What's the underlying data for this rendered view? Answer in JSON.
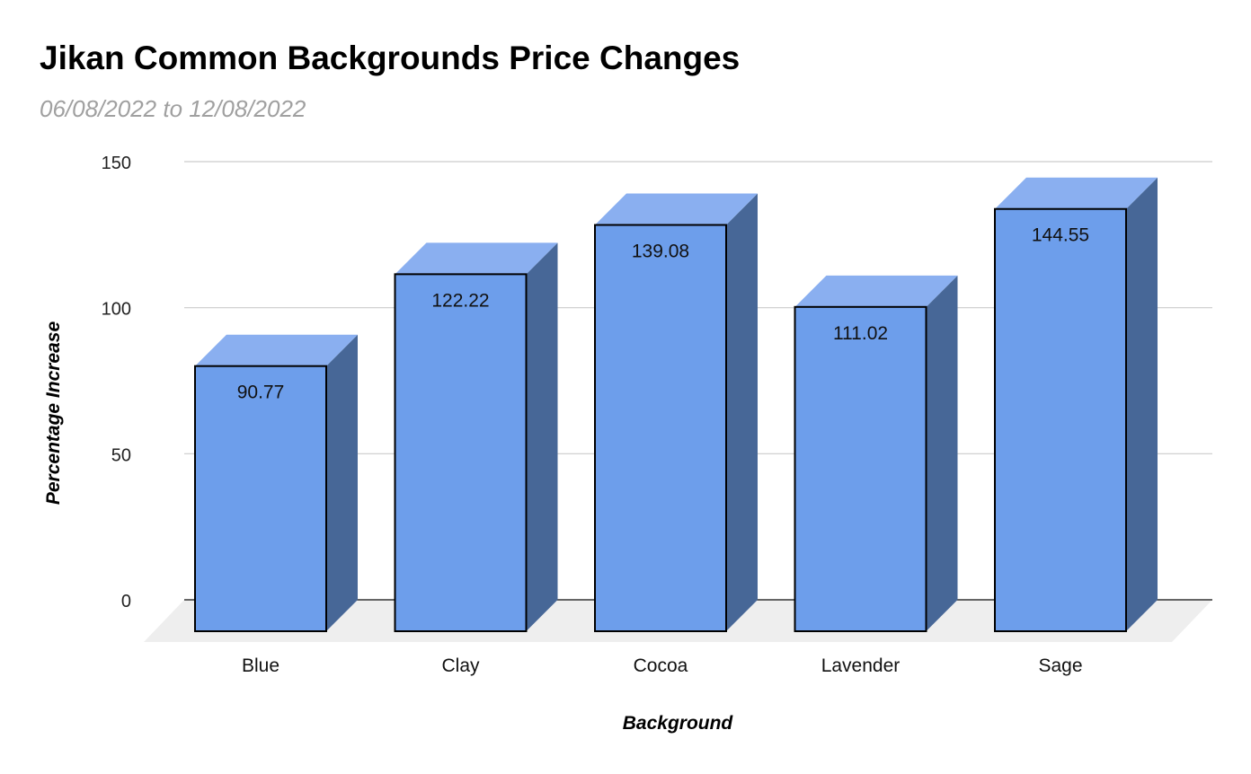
{
  "chart_data": {
    "type": "bar",
    "title": "Jikan Common Backgrounds Price Changes",
    "subtitle": "06/08/2022 to 12/08/2022",
    "xlabel": "Background",
    "ylabel": "Percentage Increase",
    "categories": [
      "Blue",
      "Clay",
      "Cocoa",
      "Lavender",
      "Sage"
    ],
    "values": [
      90.77,
      122.22,
      139.08,
      111.02,
      144.55
    ],
    "ylim": [
      0,
      150
    ],
    "yticks": [
      0,
      50,
      100,
      150
    ],
    "grid": true,
    "legend": "none",
    "style": "3d",
    "colors": {
      "front": "#6d9eeb",
      "top": "#8aaff0",
      "side": "#476797",
      "floor": "#eeeeee",
      "grid": "#cccccc",
      "outline": "#000000"
    }
  }
}
